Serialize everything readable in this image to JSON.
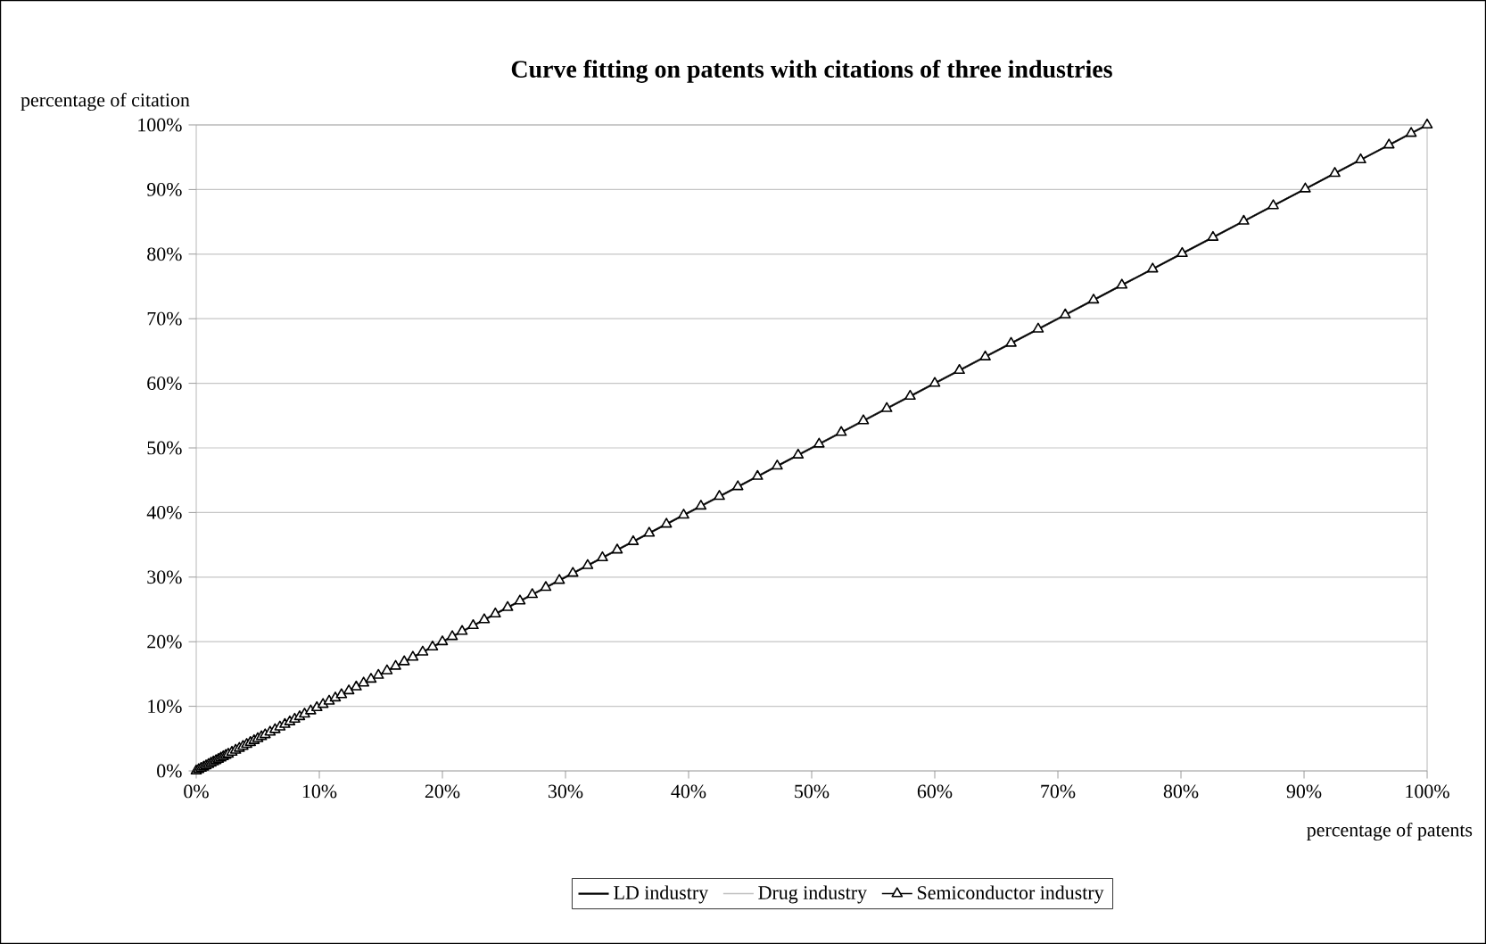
{
  "chart_data": {
    "type": "line",
    "title": "Curve fitting on patents with citations of three industries",
    "xlabel": "percentage of patents",
    "ylabel": "percentage of citation",
    "xlim": [
      0,
      100
    ],
    "ylim": [
      0,
      100
    ],
    "xticks": [
      {
        "value": 0,
        "label": "0%"
      },
      {
        "value": 10,
        "label": "10%"
      },
      {
        "value": 20,
        "label": "20%"
      },
      {
        "value": 30,
        "label": "30%"
      },
      {
        "value": 40,
        "label": "40%"
      },
      {
        "value": 50,
        "label": "50%"
      },
      {
        "value": 60,
        "label": "60%"
      },
      {
        "value": 70,
        "label": "70%"
      },
      {
        "value": 80,
        "label": "80%"
      },
      {
        "value": 90,
        "label": "90%"
      },
      {
        "value": 100,
        "label": "100%"
      }
    ],
    "yticks": [
      {
        "value": 0,
        "label": "0%"
      },
      {
        "value": 10,
        "label": "10%"
      },
      {
        "value": 20,
        "label": "20%"
      },
      {
        "value": 30,
        "label": "30%"
      },
      {
        "value": 40,
        "label": "40%"
      },
      {
        "value": 50,
        "label": "50%"
      },
      {
        "value": 60,
        "label": "60%"
      },
      {
        "value": 70,
        "label": "70%"
      },
      {
        "value": 80,
        "label": "80%"
      },
      {
        "value": 90,
        "label": "90%"
      },
      {
        "value": 100,
        "label": "100%"
      }
    ],
    "grid": "y",
    "legend": "bottom",
    "line_style": "solid",
    "series": [
      {
        "name": "LD industry",
        "color": "#000000",
        "marker": "none",
        "x": [
          0,
          10,
          20,
          30,
          40,
          50,
          60,
          70,
          80,
          90,
          100
        ],
        "values": [
          0,
          10,
          20,
          30,
          40,
          50,
          60,
          70,
          80,
          90,
          100
        ]
      },
      {
        "name": "Drug industry",
        "color": "#c0c0c0",
        "marker": "none",
        "x": [
          0,
          10,
          20,
          30,
          40,
          50,
          60,
          70,
          80,
          90,
          100
        ],
        "values": [
          0,
          10,
          20,
          30,
          40,
          50,
          60,
          70,
          80,
          90,
          100
        ]
      },
      {
        "name": "Semiconductor industry",
        "color": "#000000",
        "marker": "triangle",
        "x": [
          0,
          0.2,
          0.4,
          0.6,
          0.8,
          1.0,
          1.2,
          1.4,
          1.6,
          1.8,
          2.0,
          2.2,
          2.4,
          2.6,
          2.9,
          3.2,
          3.5,
          3.8,
          4.1,
          4.4,
          4.7,
          5.0,
          5.3,
          5.6,
          6.0,
          6.4,
          6.8,
          7.2,
          7.6,
          8.0,
          8.4,
          8.8,
          9.3,
          9.8,
          10.3,
          10.8,
          11.3,
          11.8,
          12.4,
          13.0,
          13.6,
          14.2,
          14.8,
          15.5,
          16.2,
          16.9,
          17.6,
          18.4,
          19.2,
          20.0,
          20.8,
          21.6,
          22.5,
          23.4,
          24.3,
          25.3,
          26.3,
          27.3,
          28.4,
          29.5,
          30.6,
          31.8,
          33.0,
          34.2,
          35.5,
          36.8,
          38.2,
          39.6,
          41.0,
          42.5,
          44.0,
          45.6,
          47.2,
          48.9,
          50.6,
          52.4,
          54.2,
          56.1,
          58.0,
          60.0,
          62.0,
          64.1,
          66.2,
          68.4,
          70.6,
          72.9,
          75.2,
          77.7,
          80.1,
          82.6,
          85.1,
          87.5,
          90.1,
          92.5,
          94.6,
          96.9,
          98.7,
          100
        ],
        "values": [
          0,
          0.2,
          0.4,
          0.6,
          0.8,
          1.0,
          1.2,
          1.4,
          1.6,
          1.8,
          2.0,
          2.2,
          2.4,
          2.6,
          2.9,
          3.2,
          3.5,
          3.8,
          4.1,
          4.4,
          4.7,
          5.0,
          5.3,
          5.6,
          6.0,
          6.4,
          6.8,
          7.2,
          7.6,
          8.0,
          8.4,
          8.8,
          9.3,
          9.8,
          10.3,
          10.8,
          11.3,
          11.8,
          12.4,
          13.0,
          13.6,
          14.2,
          14.8,
          15.5,
          16.2,
          16.9,
          17.6,
          18.4,
          19.2,
          20.0,
          20.8,
          21.6,
          22.5,
          23.4,
          24.3,
          25.3,
          26.3,
          27.3,
          28.4,
          29.5,
          30.6,
          31.8,
          33.0,
          34.2,
          35.5,
          36.8,
          38.2,
          39.6,
          41.0,
          42.5,
          44.0,
          45.6,
          47.2,
          48.9,
          50.6,
          52.4,
          54.2,
          56.1,
          58.0,
          60.0,
          62.0,
          64.1,
          66.2,
          68.4,
          70.6,
          72.9,
          75.2,
          77.7,
          80.1,
          82.6,
          85.1,
          87.5,
          90.1,
          92.5,
          94.6,
          96.9,
          98.7,
          100
        ]
      }
    ]
  }
}
